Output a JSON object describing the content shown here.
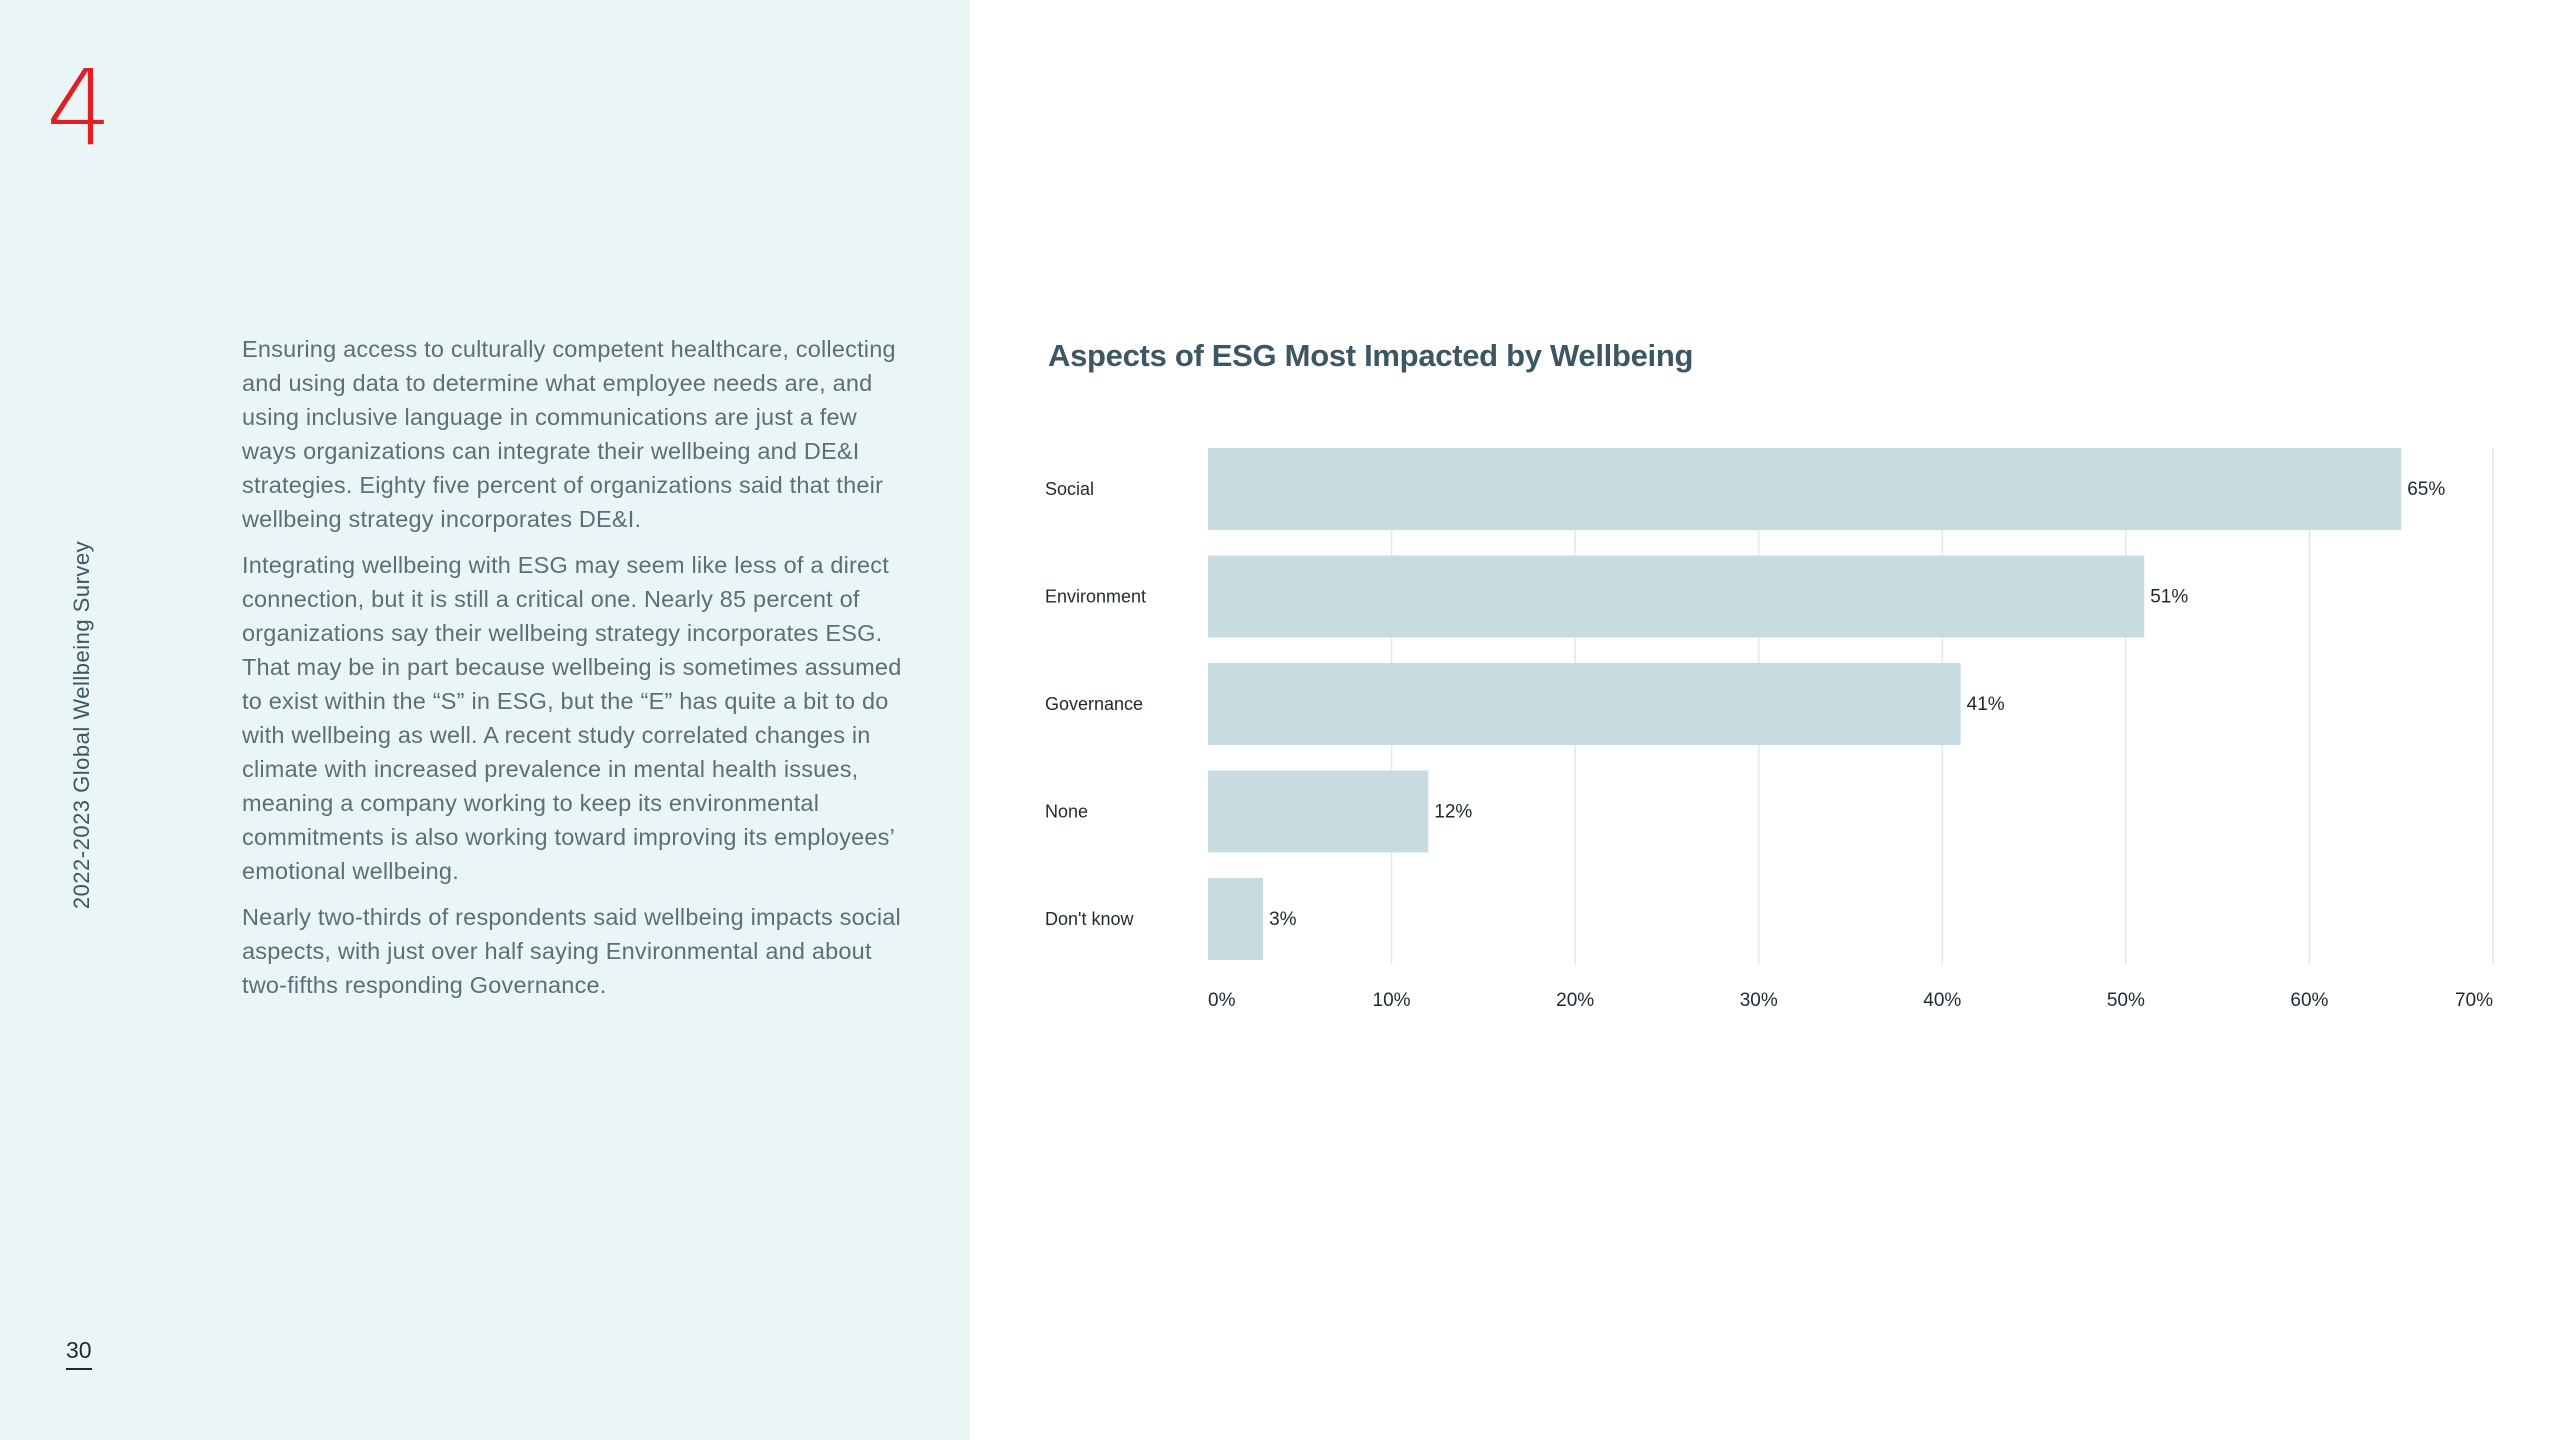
{
  "page": {
    "section_number": "4",
    "side_title": "2022-2023 Global Wellbeing Survey",
    "page_number": "30",
    "paragraphs": [
      "Ensuring access to culturally competent healthcare, collecting and using data to determine what employee needs are, and using inclusive language in communications are just a few ways organizations can integrate their wellbeing and DE&I strategies. Eighty five percent of organizations said that their wellbeing strategy incorporates DE&I.",
      "Integrating wellbeing with ESG may seem like less of a direct connection, but it is still a critical one. Nearly 85 percent of organizations say their wellbeing strategy incorporates ESG. That may be in part because wellbeing is sometimes assumed to exist within the “S” in ESG, but the “E” has quite a bit to do with wellbeing as well. A recent study correlated changes in climate with increased prevalence in mental health issues, meaning a company working to keep its environmental commitments is also working toward improving its employees’ emotional wellbeing.",
      "Nearly two-thirds of respondents said wellbeing impacts social aspects, with just over half saying Environmental and about two-fifths responding Governance."
    ]
  },
  "colors": {
    "panel_bg": "#e9f6f5",
    "accent_red": "#e01e24",
    "bar_fill": "#c8dbe0",
    "grid": "#e6e6e6",
    "title_text": "#3d5664"
  },
  "chart_data": {
    "type": "bar",
    "orientation": "horizontal",
    "title": "Aspects of ESG Most Impacted by Wellbeing",
    "categories": [
      "Social",
      "Environment",
      "Governance",
      "None",
      "Don't know"
    ],
    "values": [
      65,
      51,
      41,
      12,
      3
    ],
    "value_labels": [
      "65%",
      "51%",
      "41%",
      "12%",
      "3%"
    ],
    "xlim": [
      0,
      70
    ],
    "xticks": [
      0,
      10,
      20,
      30,
      40,
      50,
      60,
      70
    ],
    "xtick_labels": [
      "0%",
      "10%",
      "20%",
      "30%",
      "40%",
      "50%",
      "60%",
      "70%"
    ],
    "xlabel": "",
    "ylabel": "",
    "grid": "vertical",
    "legend": "none"
  }
}
